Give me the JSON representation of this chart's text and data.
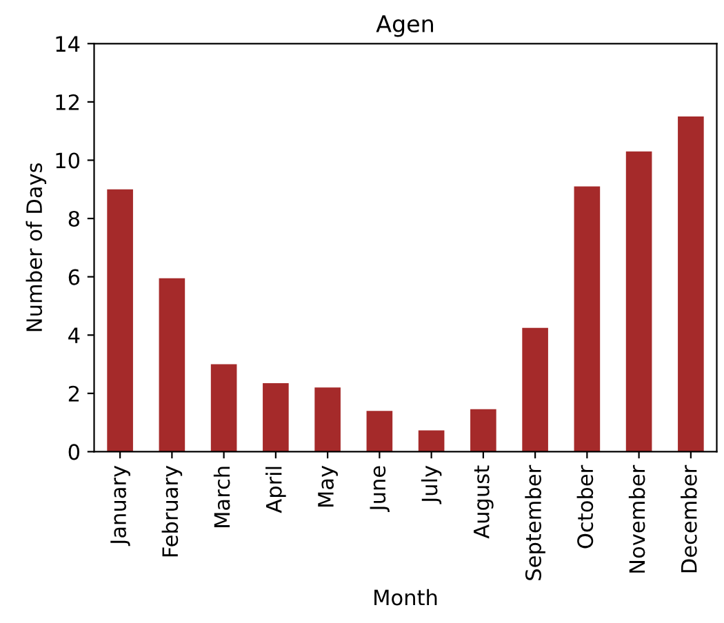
{
  "chart_data": {
    "type": "bar",
    "title": "Agen",
    "xlabel": "Month",
    "ylabel": "Number of Days",
    "categories": [
      "January",
      "February",
      "March",
      "April",
      "May",
      "June",
      "July",
      "August",
      "September",
      "October",
      "November",
      "December"
    ],
    "values": [
      9.0,
      5.95,
      3.0,
      2.35,
      2.2,
      1.4,
      0.73,
      1.46,
      4.25,
      9.1,
      10.3,
      11.5
    ],
    "color": "#a52a2a",
    "ylim": [
      0,
      14
    ],
    "yticks": [
      0,
      2,
      4,
      6,
      8,
      10,
      12,
      14
    ],
    "grid": false,
    "legend": false
  }
}
